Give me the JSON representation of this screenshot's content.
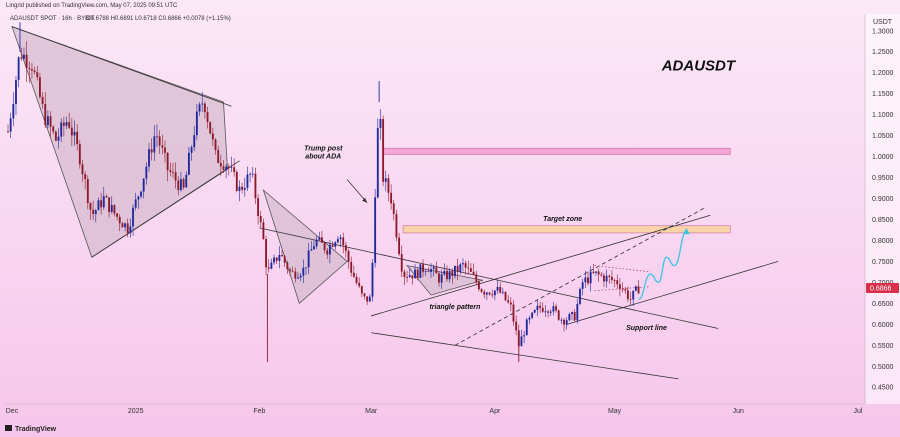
{
  "header": {
    "published": "Lingrid published on TradingView.com, May 07, 2025 09:51 UTC",
    "symbol_line": "ADAUSDT SPOT · 16h · BYBIT",
    "ohlc": "O0.6788  H0.6891  L0.6718  C0.6866  +0.0078 (+1.15%)"
  },
  "footer": {
    "brand": "TradingView"
  },
  "colors": {
    "up": "#1e2a9c",
    "down": "#8b1a2a",
    "price_label": "#d9304a",
    "pink_zone": "#f5a6d8",
    "orange_zone": "#fbd3a8",
    "triangle_fill": "#d8bcd0",
    "bg_top": "#fbe8f6",
    "bg_bottom": "#f6c6ec",
    "projection": "#3ec4e6"
  },
  "chart_data": {
    "type": "candlestick",
    "title": "ADAUSDT",
    "currency": "USDT",
    "current_price": "0.6866",
    "ylim": [
      0.41,
      1.34
    ],
    "yticks": [
      "1.3000",
      "1.2500",
      "1.2000",
      "1.1500",
      "1.1000",
      "1.0500",
      "1.0000",
      "0.9500",
      "0.9000",
      "0.8500",
      "0.8000",
      "0.7500",
      "0.7000",
      "0.6500",
      "0.6000",
      "0.5500",
      "0.5000",
      "0.4500"
    ],
    "xticks": [
      {
        "label": "Dec",
        "date": "2024-12-01"
      },
      {
        "label": "2025",
        "date": "2025-01-01"
      },
      {
        "label": "Feb",
        "date": "2025-02-01"
      },
      {
        "label": "Mar",
        "date": "2025-03-01"
      },
      {
        "label": "Apr",
        "date": "2025-04-01"
      },
      {
        "label": "May",
        "date": "2025-05-01"
      },
      {
        "label": "Jun",
        "date": "2025-06-01"
      },
      {
        "label": "Jul",
        "date": "2025-07-01"
      }
    ],
    "xlim": [
      "2024-11-30",
      "2025-07-02"
    ],
    "price_path": [
      [
        "2024-11-30",
        1.06
      ],
      [
        "2024-12-03",
        1.25
      ],
      [
        "2024-12-06",
        1.22
      ],
      [
        "2024-12-09",
        1.1
      ],
      [
        "2024-12-12",
        1.04
      ],
      [
        "2024-12-15",
        1.09
      ],
      [
        "2024-12-18",
        1.0
      ],
      [
        "2024-12-21",
        0.86
      ],
      [
        "2024-12-24",
        0.9
      ],
      [
        "2024-12-27",
        0.86
      ],
      [
        "2024-12-30",
        0.83
      ],
      [
        "2025-01-02",
        0.92
      ],
      [
        "2025-01-06",
        1.06
      ],
      [
        "2025-01-09",
        0.97
      ],
      [
        "2025-01-13",
        0.92
      ],
      [
        "2025-01-16",
        1.08
      ],
      [
        "2025-01-18",
        1.14
      ],
      [
        "2025-01-21",
        1.0
      ],
      [
        "2025-01-24",
        0.98
      ],
      [
        "2025-01-27",
        0.92
      ],
      [
        "2025-01-30",
        0.96
      ],
      [
        "2025-02-02",
        0.8
      ],
      [
        "2025-02-03",
        0.72
      ],
      [
        "2025-02-06",
        0.77
      ],
      [
        "2025-02-09",
        0.72
      ],
      [
        "2025-02-12",
        0.73
      ],
      [
        "2025-02-15",
        0.8
      ],
      [
        "2025-02-18",
        0.78
      ],
      [
        "2025-02-21",
        0.82
      ],
      [
        "2025-02-24",
        0.73
      ],
      [
        "2025-02-27",
        0.66
      ],
      [
        "2025-03-01",
        0.66
      ],
      [
        "2025-03-02",
        0.92
      ],
      [
        "2025-03-03",
        1.13
      ],
      [
        "2025-03-04",
        0.95
      ],
      [
        "2025-03-06",
        0.9
      ],
      [
        "2025-03-09",
        0.72
      ],
      [
        "2025-03-12",
        0.72
      ],
      [
        "2025-03-15",
        0.74
      ],
      [
        "2025-03-18",
        0.71
      ],
      [
        "2025-03-21",
        0.72
      ],
      [
        "2025-03-24",
        0.74
      ],
      [
        "2025-03-26",
        0.72
      ],
      [
        "2025-03-29",
        0.68
      ],
      [
        "2025-04-02",
        0.68
      ],
      [
        "2025-04-05",
        0.64
      ],
      [
        "2025-04-07",
        0.55
      ],
      [
        "2025-04-09",
        0.6
      ],
      [
        "2025-04-12",
        0.64
      ],
      [
        "2025-04-15",
        0.64
      ],
      [
        "2025-04-18",
        0.61
      ],
      [
        "2025-04-21",
        0.62
      ],
      [
        "2025-04-23",
        0.7
      ],
      [
        "2025-04-26",
        0.72
      ],
      [
        "2025-04-29",
        0.71
      ],
      [
        "2025-05-02",
        0.7
      ],
      [
        "2025-05-05",
        0.66
      ],
      [
        "2025-05-07",
        0.6866
      ]
    ],
    "wicks": [
      {
        "date": "2024-12-03",
        "high": 1.32
      },
      {
        "date": "2025-02-03",
        "low": 0.51
      },
      {
        "date": "2025-03-03",
        "high": 1.18
      },
      {
        "date": "2025-04-07",
        "low": 0.51
      }
    ],
    "zones": [
      {
        "name": "pink-zone",
        "y_top": 1.02,
        "y_bottom": 1.005,
        "x_start": "2025-03-04",
        "x_end": "2025-05-30",
        "color": "#f5a6d8"
      },
      {
        "name": "target-zone",
        "y_top": 0.835,
        "y_bottom": 0.818,
        "x_start": "2025-03-09",
        "x_end": "2025-05-30",
        "color": "#fbd3a8"
      }
    ],
    "triangles": [
      {
        "name": "triangle-1",
        "points": [
          [
            "2024-12-01",
            1.31
          ],
          [
            "2025-01-23",
            1.13
          ],
          [
            "2025-01-24",
            0.97
          ],
          [
            "2024-12-21",
            0.76
          ]
        ]
      },
      {
        "name": "triangle-2",
        "points": [
          [
            "2025-02-02",
            0.92
          ],
          [
            "2025-02-23",
            0.75
          ],
          [
            "2025-02-11",
            0.65
          ]
        ]
      },
      {
        "name": "triangle-3",
        "points": [
          [
            "2025-03-10",
            0.74
          ],
          [
            "2025-03-29",
            0.705
          ],
          [
            "2025-03-16",
            0.67
          ]
        ]
      }
    ],
    "lines": [
      {
        "name": "upper-trend-1",
        "from": [
          "2024-12-01",
          1.31
        ],
        "to": [
          "2025-01-25",
          1.12
        ],
        "style": "solid"
      },
      {
        "name": "lower-trend-1",
        "from": [
          "2024-12-21",
          0.76
        ],
        "to": [
          "2025-01-27",
          0.99
        ],
        "style": "solid"
      },
      {
        "name": "upper-trend-2",
        "from": [
          "2025-02-01",
          0.83
        ],
        "to": [
          "2025-05-27",
          0.59
        ],
        "style": "solid"
      },
      {
        "name": "triangle-pattern-line",
        "from": [
          "2025-03-01",
          0.62
        ],
        "to": [
          "2025-05-25",
          0.86
        ],
        "style": "solid"
      },
      {
        "name": "channel-lower",
        "from": [
          "2025-03-01",
          0.58
        ],
        "to": [
          "2025-05-17",
          0.47
        ],
        "style": "solid"
      },
      {
        "name": "dashed-trend",
        "from": [
          "2025-03-22",
          0.55
        ],
        "to": [
          "2025-05-24",
          0.88
        ],
        "style": "dashed"
      },
      {
        "name": "support-line",
        "from": [
          "2025-04-19",
          0.6
        ],
        "to": [
          "2025-06-11",
          0.75
        ],
        "style": "solid"
      },
      {
        "name": "dotted-box-top",
        "from": [
          "2025-04-26",
          0.74
        ],
        "to": [
          "2025-05-10",
          0.725
        ],
        "style": "dotted"
      },
      {
        "name": "dotted-box-bottom",
        "from": [
          "2025-04-26",
          0.68
        ],
        "to": [
          "2025-05-10",
          0.69
        ],
        "style": "dotted"
      },
      {
        "name": "trump-arrow",
        "from": [
          "2025-02-23",
          0.945
        ],
        "to": [
          "2025-02-28",
          0.89
        ],
        "style": "arrow"
      }
    ],
    "projection": [
      [
        "2025-05-07",
        0.66
      ],
      [
        "2025-05-10",
        0.72
      ],
      [
        "2025-05-12",
        0.7
      ],
      [
        "2025-05-14",
        0.76
      ],
      [
        "2025-05-16",
        0.74
      ],
      [
        "2025-05-19",
        0.82
      ]
    ],
    "annotations": [
      {
        "text": "ADAUSDT",
        "date": "2025-05-22",
        "y": 1.205,
        "size": 15
      },
      {
        "text": "Trump post",
        "date": "2025-02-17",
        "y": 1.015,
        "size": 7
      },
      {
        "text": "about ADA",
        "date": "2025-02-17",
        "y": 0.995,
        "size": 7
      },
      {
        "text": "Target zone",
        "date": "2025-04-18",
        "y": 0.846,
        "size": 7
      },
      {
        "text": "triangle pattern",
        "date": "2025-03-22",
        "y": 0.636,
        "size": 7
      },
      {
        "text": "Support line",
        "date": "2025-05-09",
        "y": 0.587,
        "size": 7
      }
    ]
  }
}
